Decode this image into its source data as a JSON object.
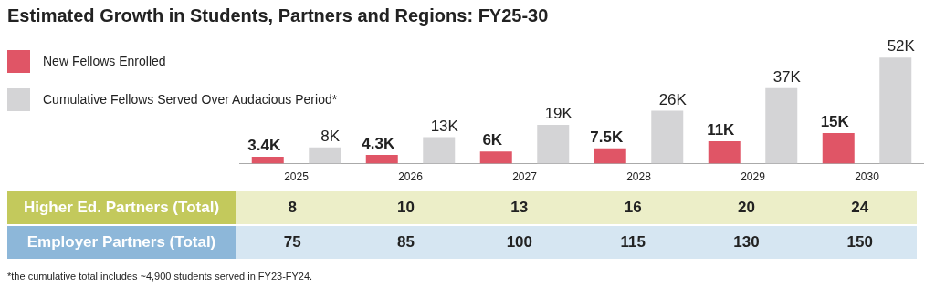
{
  "chart_data": [
    {
      "type": "bar",
      "title": "Estimated Growth in Students, Partners and Regions: FY25-30",
      "categories": [
        "2025",
        "2026",
        "2027",
        "2028",
        "2029",
        "2030"
      ],
      "legend": "top left",
      "series": [
        {
          "name": "New Fellows Enrolled",
          "color": "#e05566",
          "values": [
            3.4,
            4.3,
            6,
            7.5,
            11,
            15
          ],
          "value_labels": [
            "3.4K",
            "4.3K",
            "6K",
            "7.5K",
            "11K",
            "15K"
          ]
        },
        {
          "name": "Cumulative Fellows Served Over Audacious Period*",
          "color": "#d4d4d6",
          "values": [
            8,
            13,
            19,
            26,
            37,
            52
          ],
          "value_labels": [
            "8K",
            "13K",
            "19K",
            "26K",
            "37K",
            "52K"
          ]
        }
      ]
    },
    {
      "type": "heatmap",
      "categories": [
        null,
        null,
        null,
        null,
        null,
        null
      ],
      "y_categories": [
        "Higher Ed. Partners (Total)",
        "Employer Partners (Total)"
      ],
      "tick_labels": "y",
      "data_labels": true,
      "cells": [
        [
          8,
          10,
          13,
          16,
          20,
          24
        ],
        [
          75,
          85,
          100,
          115,
          130,
          150
        ]
      ],
      "annotations": [
        "*the cumulative total includes ~4,900 students served in FY23-FY24."
      ]
    }
  ]
}
